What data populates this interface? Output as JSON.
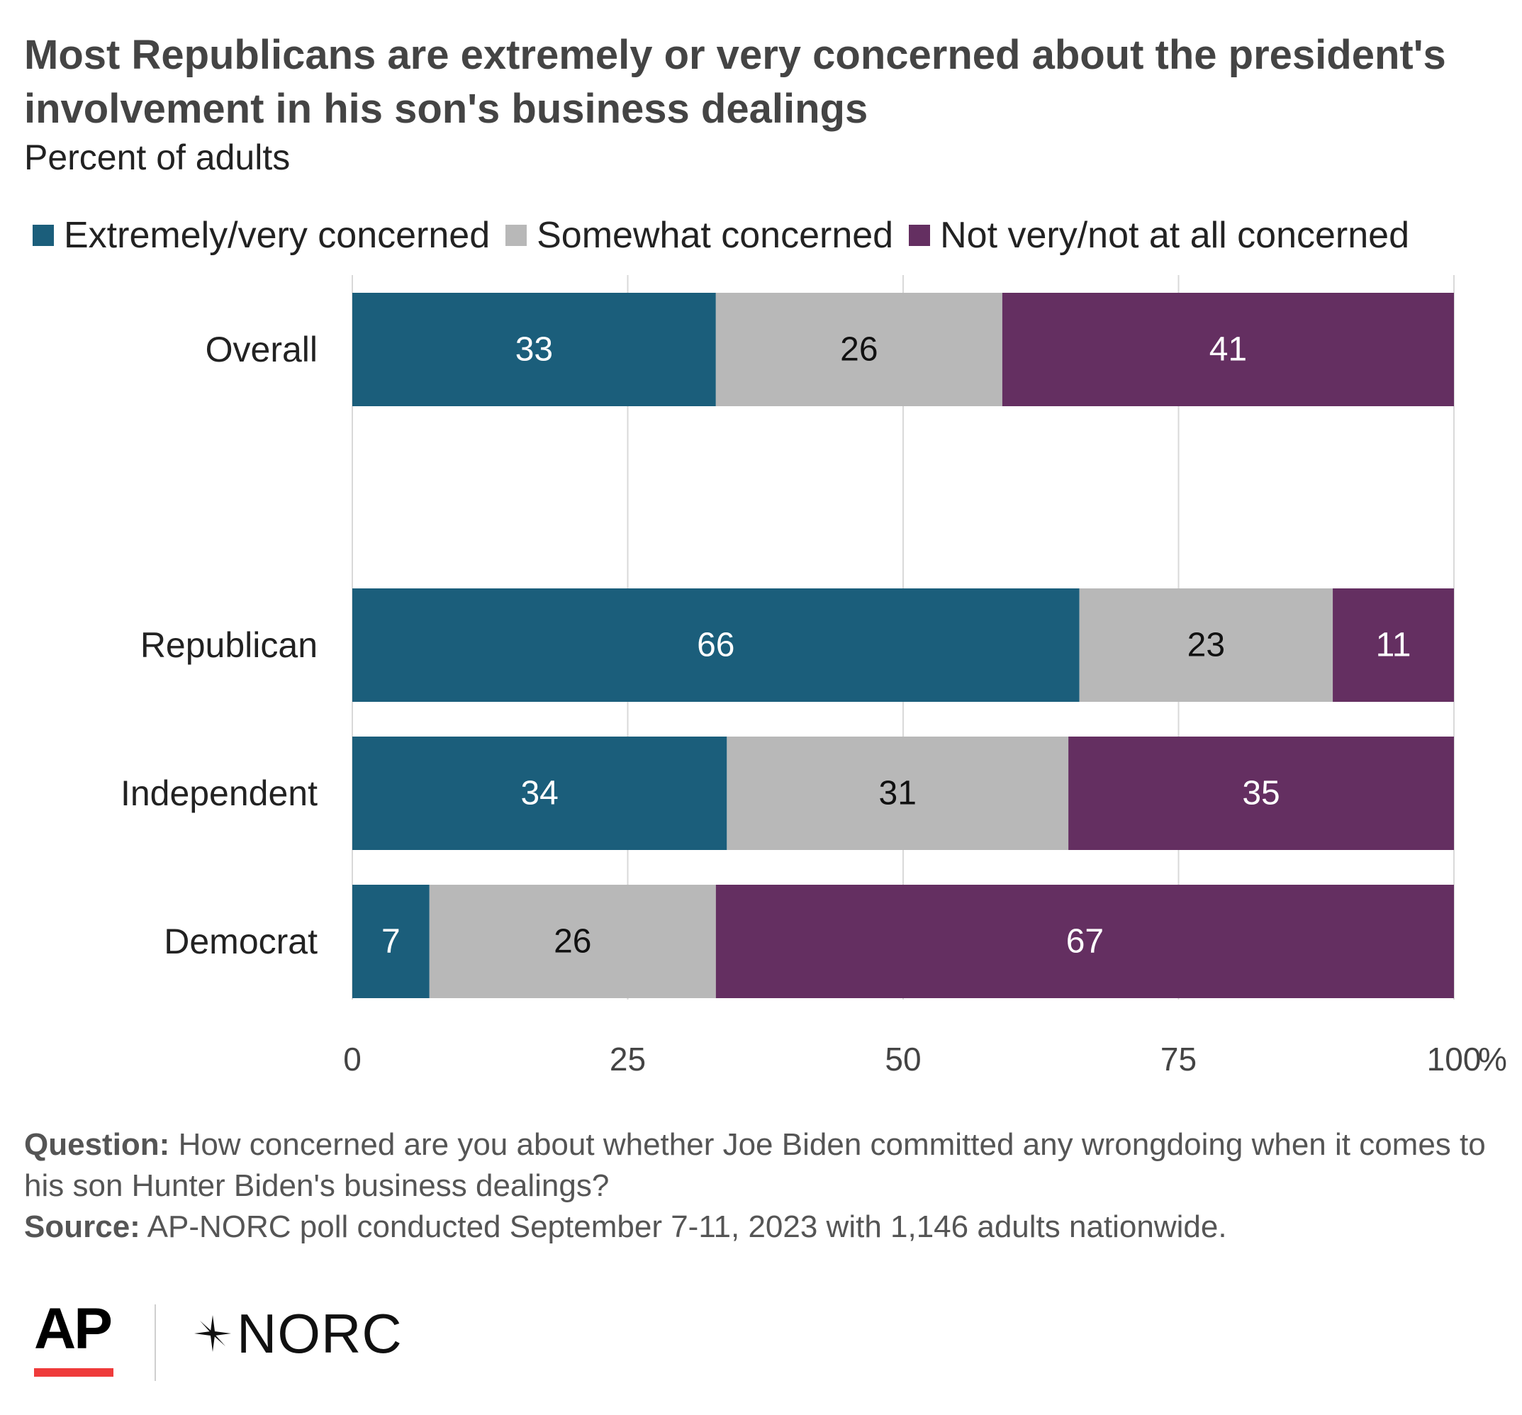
{
  "header": {
    "title": "Most Republicans are extremely or very concerned about the president's involvement in his son's business dealings",
    "subtitle": "Percent of adults"
  },
  "legend": {
    "items": [
      {
        "label": "Extremely/very concerned",
        "color": "#1b5e7b"
      },
      {
        "label": "Somewhat concerned",
        "color": "#b8b8b8"
      },
      {
        "label": "Not very/not at all concerned",
        "color": "#642f61"
      }
    ]
  },
  "chart_data": {
    "type": "bar",
    "orientation": "horizontal",
    "stacked": true,
    "categories": [
      "Overall",
      "Republican",
      "Independent",
      "Democrat"
    ],
    "series": [
      {
        "name": "Extremely/very concerned",
        "values": [
          33,
          66,
          34,
          7
        ],
        "color": "#1b5e7b",
        "label_color": "#ffffff"
      },
      {
        "name": "Somewhat concerned",
        "values": [
          26,
          23,
          31,
          26
        ],
        "color": "#b8b8b8",
        "label_color": "#111111"
      },
      {
        "name": "Not very/not at all concerned",
        "values": [
          41,
          11,
          35,
          67
        ],
        "color": "#642f61",
        "label_color": "#ffffff"
      }
    ],
    "xlim": [
      0,
      100
    ],
    "x_ticks": [
      "0",
      "25",
      "50",
      "75",
      "100"
    ],
    "x_unit": "%",
    "grid": true
  },
  "footer": {
    "question_label": "Question:",
    "question_text": "How concerned are you about whether Joe Biden committed any wrongdoing when it comes to his son Hunter Biden's business dealings?",
    "source_label": "Source:",
    "source_text": "AP-NORC poll conducted September 7-11, 2023 with 1,146 adults nationwide."
  },
  "logos": {
    "ap": "AP",
    "norc": "NORC",
    "ap_accent_color": "#ef3b3b"
  }
}
